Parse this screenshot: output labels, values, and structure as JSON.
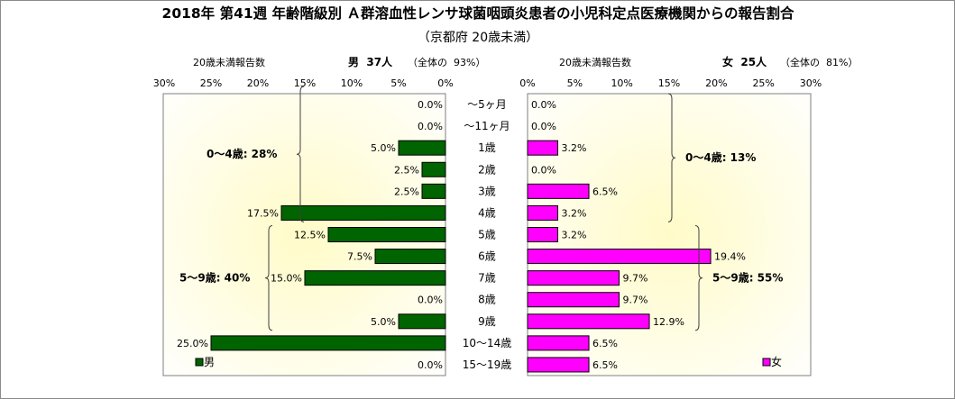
{
  "title": "2018年 第41週 年齢階級別 Ａ群溶血性レンサ球菌咽頭炎患者の小児科定点医療機関からの報告割合",
  "subtitle": "（京都府 20歳未満）",
  "left_header": {
    "count_label": "20歳未満報告数",
    "sex_count": "男  37人",
    "share": "（全体の  93%）"
  },
  "right_header": {
    "count_label": "20歳未満報告数",
    "sex_count": "女  25人",
    "share": "（全体の  81%）"
  },
  "chart_data": {
    "type": "bar",
    "orientation": "horizontal",
    "layout": "population-pyramid",
    "categories": [
      "～5ヶ月",
      "～11ヶ月",
      "1歳",
      "2歳",
      "3歳",
      "4歳",
      "5歳",
      "6歳",
      "7歳",
      "8歳",
      "9歳",
      "10～14歳",
      "15～19歳"
    ],
    "series": [
      {
        "name": "男",
        "side": "left",
        "color": "#006400",
        "values": [
          0.0,
          0.0,
          5.0,
          2.5,
          2.5,
          17.5,
          12.5,
          7.5,
          15.0,
          0.0,
          5.0,
          25.0,
          0.0
        ],
        "labels": [
          "0.0%",
          "0.0%",
          "5.0%",
          "2.5%",
          "2.5%",
          "17.5%",
          "12.5%",
          "7.5%",
          "15.0%",
          "0.0%",
          "5.0%",
          "25.0%",
          "0.0%"
        ]
      },
      {
        "name": "女",
        "side": "right",
        "color": "#ff00ff",
        "values": [
          0.0,
          0.0,
          3.2,
          0.0,
          6.5,
          3.2,
          3.2,
          19.4,
          9.7,
          9.7,
          12.9,
          6.5,
          6.5
        ],
        "labels": [
          "0.0%",
          "0.0%",
          "3.2%",
          "0.0%",
          "6.5%",
          "3.2%",
          "3.2%",
          "19.4%",
          "9.7%",
          "9.7%",
          "12.9%",
          "6.5%",
          "6.5%"
        ]
      }
    ],
    "left_axis_ticks": [
      "30%",
      "25%",
      "20%",
      "15%",
      "10%",
      "5%",
      "0%"
    ],
    "right_axis_ticks": [
      "0%",
      "5%",
      "10%",
      "15%",
      "20%",
      "25%",
      "30%"
    ],
    "xlim": [
      0,
      30
    ],
    "annotations": [
      {
        "text": "0～4歳: 28%",
        "side": "left",
        "group": "0-4"
      },
      {
        "text": "5～9歳: 40%",
        "side": "left",
        "group": "5-9"
      },
      {
        "text": "0～4歳: 13%",
        "side": "right",
        "group": "0-4"
      },
      {
        "text": "5～9歳: 55%",
        "side": "right",
        "group": "5-9"
      }
    ],
    "legend": [
      {
        "name": "男",
        "position": "bottom-left"
      },
      {
        "name": "女",
        "position": "bottom-right"
      }
    ],
    "grid": false,
    "plot_background": "gradient light-yellow"
  }
}
